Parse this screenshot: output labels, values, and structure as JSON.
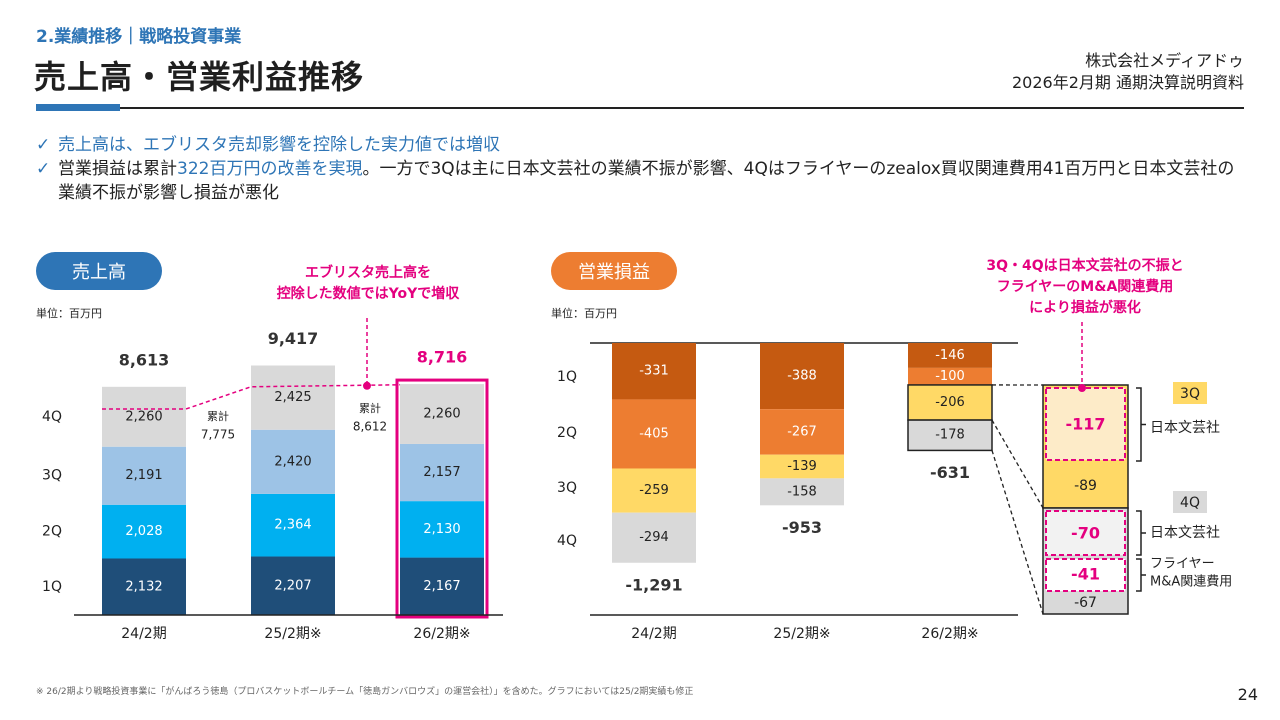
{
  "header": {
    "section": "2.業績推移｜戦略投資事業",
    "title": "売上高・営業利益推移",
    "company": "株式会社メディアドゥ",
    "document": "2026年2月期 通期決算説明資料"
  },
  "bullets": [
    {
      "check": "✓",
      "text": "売上高は、エブリスタ売却影響を控除した実力値では増収"
    },
    {
      "check": "✓",
      "pre": "営業損益は累計",
      "highlight": "322百万円の改善を実現",
      "post": "。一方で3Qは主に日本文芸社の業績不振が影響、4Qはフライヤーのzealox買収関連費用41百万円と日本文芸社の業績不振が影響し損益が悪化"
    }
  ],
  "colors": {
    "brand_blue": "#2e75b6",
    "accent_pink": "#e4007f",
    "op_orange": "#ed7d31",
    "sales_q1": "#1f4e79",
    "sales_q2": "#00b0f0",
    "sales_q3": "#9dc3e6",
    "sales_q4": "#d9d9d9",
    "op_q1": "#c55a11",
    "op_q2": "#ed7d31",
    "op_q3": "#ffd966",
    "op_q4": "#d9d9d9"
  },
  "sales_panel": {
    "pill": "売上高",
    "unit": "単位：百万円",
    "callout": [
      "エブリスタ売上高を",
      "控除した数値ではYoYで増収"
    ],
    "cumulative_label": "累計"
  },
  "op_panel": {
    "pill": "営業損益",
    "unit": "単位：百万円",
    "callout": [
      "3Q・4Qは日本文芸社の不振と",
      "フライヤーのM&A関連費用",
      "により損益が悪化"
    ]
  },
  "chart_data": [
    {
      "type": "bar",
      "stacked": true,
      "title": "売上高",
      "unit": "百万円",
      "categories": [
        "24/2期",
        "25/2期※",
        "26/2期※"
      ],
      "quarter_labels": [
        "1Q",
        "2Q",
        "3Q",
        "4Q"
      ],
      "series": [
        {
          "name": "1Q",
          "values": [
            2132,
            2207,
            2167
          ]
        },
        {
          "name": "2Q",
          "values": [
            2028,
            2364,
            2130
          ]
        },
        {
          "name": "3Q",
          "values": [
            2191,
            2420,
            2157
          ]
        },
        {
          "name": "4Q",
          "values": [
            2260,
            2425,
            2260
          ]
        }
      ],
      "totals": [
        "8,613",
        "9,417",
        "8,716"
      ],
      "totals_numeric": [
        8613,
        9417,
        8716
      ],
      "series_labels": [
        [
          "2,132",
          "2,028",
          "2,191",
          "2,260"
        ],
        [
          "2,207",
          "2,364",
          "2,420",
          "2,425"
        ],
        [
          "2,167",
          "2,130",
          "2,157",
          "2,260"
        ]
      ],
      "excluding_everystar_cumulative": [
        {
          "between": "24/2期-25/2期",
          "label": "累計",
          "value": "7,775"
        },
        {
          "between": "25/2期-26/2期",
          "label": "累計",
          "value": "8,612"
        }
      ],
      "highlighted_category": "26/2期※",
      "ylim": [
        0,
        10000
      ]
    },
    {
      "type": "bar",
      "stacked": true,
      "title": "営業損益",
      "unit": "百万円",
      "categories": [
        "24/2期",
        "25/2期※",
        "26/2期※"
      ],
      "quarter_labels": [
        "1Q",
        "2Q",
        "3Q",
        "4Q"
      ],
      "series": [
        {
          "name": "1Q",
          "values": [
            -331,
            -388,
            -146
          ]
        },
        {
          "name": "2Q",
          "values": [
            -405,
            -267,
            -100
          ]
        },
        {
          "name": "3Q",
          "values": [
            -259,
            -139,
            -206
          ]
        },
        {
          "name": "4Q",
          "values": [
            -294,
            -158,
            -178
          ]
        }
      ],
      "totals": [
        "-1,291",
        "-953",
        "-631"
      ],
      "totals_numeric": [
        -1291,
        -953,
        -631
      ],
      "breakdown": {
        "3Q": {
          "tag": "3Q",
          "items": [
            {
              "value": "-117",
              "label": "日本文芸社",
              "highlight": true
            },
            {
              "value": "-89",
              "label": "",
              "highlight": false
            }
          ]
        },
        "4Q": {
          "tag": "4Q",
          "items": [
            {
              "value": "-70",
              "label": "日本文芸社",
              "highlight": true
            },
            {
              "value": "-41",
              "label": "フライヤー\nM&A関連費用",
              "highlight": true
            },
            {
              "value": "-67",
              "label": "",
              "highlight": false
            }
          ]
        }
      },
      "ylim": [
        -1400,
        0
      ]
    }
  ],
  "footer": {
    "note": "※ 26/2期より戦略投資事業に「がんばろう徳島（プロバスケットボールチーム「徳島ガンバロウズ」の運営会社）」を含めた。グラフにおいては25/2期実績も修正",
    "page": "24"
  }
}
